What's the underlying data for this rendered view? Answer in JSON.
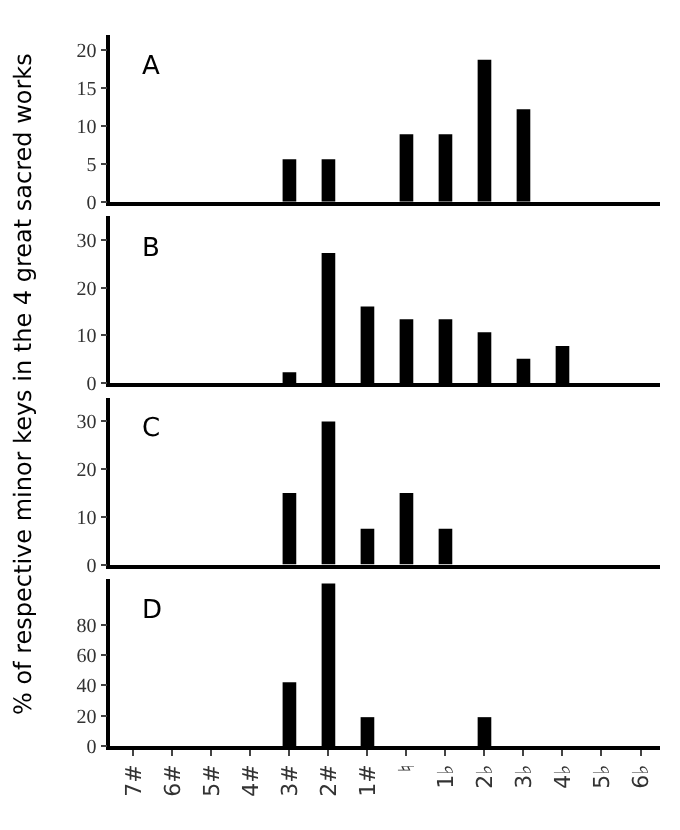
{
  "chart_data": [
    {
      "type": "bar",
      "ylabel": "% of respective minor keys in the 4 great sacred works",
      "annotations": [
        "A"
      ],
      "categories": [
        null,
        null,
        null,
        null,
        null,
        null,
        null,
        null,
        null,
        null,
        null,
        null,
        null,
        null
      ],
      "values": [
        null,
        null,
        null,
        null,
        5.6,
        5.6,
        null,
        8.9,
        8.9,
        18.7,
        12.2,
        null,
        null,
        null
      ],
      "color": "#000000",
      "ylim": [
        0,
        22
      ],
      "yticks": [
        0,
        5,
        10,
        15,
        20
      ],
      "tick_labels": "y"
    },
    {
      "type": "bar",
      "annotations": [
        "B"
      ],
      "categories": [
        null,
        null,
        null,
        null,
        null,
        null,
        null,
        null,
        null,
        null,
        null,
        null,
        null,
        null
      ],
      "values": [
        null,
        null,
        null,
        null,
        2.3,
        27.3,
        16.1,
        13.4,
        13.4,
        10.7,
        5.1,
        7.8,
        null,
        null
      ],
      "color": "#000000",
      "ylim": [
        0,
        35
      ],
      "yticks": [
        0,
        10,
        20,
        30
      ],
      "tick_labels": "y"
    },
    {
      "type": "bar",
      "annotations": [
        "C"
      ],
      "categories": [
        null,
        null,
        null,
        null,
        null,
        null,
        null,
        null,
        null,
        null,
        null,
        null,
        null,
        null
      ],
      "values": [
        null,
        null,
        null,
        null,
        15,
        30,
        7.5,
        15,
        7.5,
        null,
        null,
        null,
        null,
        null
      ],
      "color": "#000000",
      "ylim": [
        0,
        35
      ],
      "yticks": [
        0,
        10,
        20,
        30
      ],
      "tick_labels": "y"
    },
    {
      "type": "bar",
      "annotations": [
        "D"
      ],
      "categories": [
        "7#",
        "6#",
        "5#",
        "4#",
        "3#",
        "2#",
        "1#",
        "♮",
        "1♭",
        "2♭",
        "3♭",
        "4♭",
        "5♭",
        "6♭"
      ],
      "values": [
        null,
        null,
        null,
        null,
        42,
        107,
        19,
        null,
        null,
        19,
        null,
        null,
        null,
        null
      ],
      "color": "#000000",
      "ylim": [
        0,
        110
      ],
      "yticks": [
        0,
        20,
        40,
        60,
        80
      ]
    }
  ]
}
